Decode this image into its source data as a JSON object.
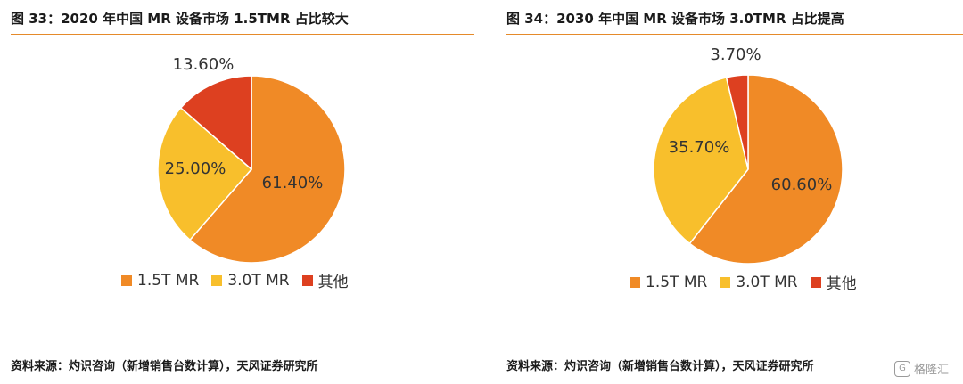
{
  "colors": {
    "orange": "#f08a26",
    "yellow": "#f8bf2c",
    "red": "#dd4020",
    "rule": "#e58a2a"
  },
  "chart_data": [
    {
      "type": "pie",
      "title": "图 33：2020 年中国 MR 设备市场 1.5TMR 占比较大",
      "source": "资料来源：灼识咨询（新增销售台数计算），天风证券研究所",
      "categories": [
        "1.5T MR",
        "3.0T MR",
        "其他"
      ],
      "values": [
        61.4,
        25.0,
        13.6
      ],
      "labels": [
        "61.40%",
        "25.00%",
        "13.60%"
      ],
      "legend_position": "bottom"
    },
    {
      "type": "pie",
      "title": "图 34：2030 年中国 MR 设备市场 3.0TMR 占比提高",
      "source": "资料来源：灼识咨询（新增销售台数计算），天风证券研究所",
      "categories": [
        "1.5T MR",
        "3.0T MR",
        "其他"
      ],
      "values": [
        60.6,
        35.7,
        3.7
      ],
      "labels": [
        "60.60%",
        "35.70%",
        "3.70%"
      ],
      "legend_position": "bottom"
    }
  ],
  "watermark": {
    "icon": "gelonghui-logo-icon",
    "text": "格隆汇"
  }
}
